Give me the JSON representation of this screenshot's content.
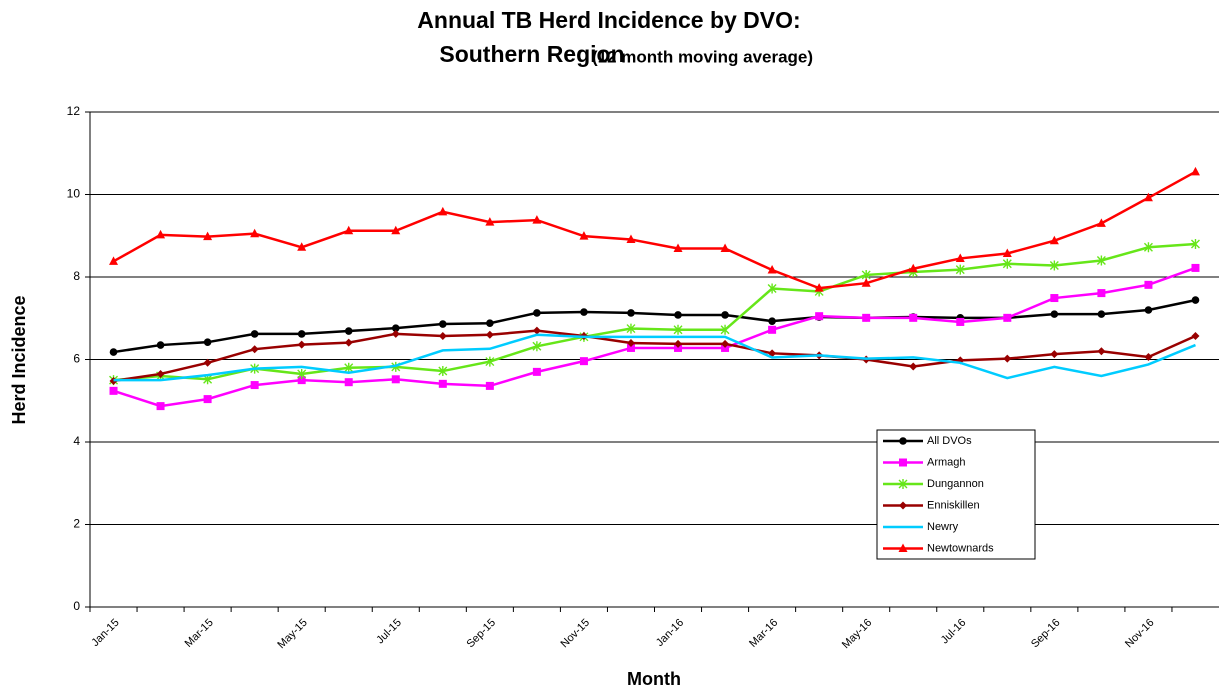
{
  "chart_data": {
    "type": "line",
    "title_lines": [
      "Annual TB Herd Incidence by DVO:",
      "Southern Region"
    ],
    "subtitle": "(12 month moving average)",
    "x_label": "Month",
    "y_label": "Herd Incidence",
    "categories": [
      "Jan-15",
      null,
      "Mar-15",
      null,
      "May-15",
      null,
      "Jul-15",
      null,
      "Sep-15",
      null,
      "Nov-15",
      null,
      "Jan-16",
      null,
      "Mar-16",
      null,
      "May-16",
      null,
      "Jul-16",
      null,
      "Sep-16",
      null,
      "Nov-16",
      null
    ],
    "ylim": [
      0,
      12
    ],
    "yticks": [
      0,
      2,
      4,
      6,
      8,
      10,
      12
    ],
    "grid": true,
    "series": [
      {
        "name": "All DVOs",
        "color": "#000000",
        "marker": "circle",
        "values": [
          6.18,
          6.35,
          6.42,
          6.62,
          6.62,
          6.69,
          6.76,
          6.86,
          6.88,
          7.13,
          7.15,
          7.13,
          7.08,
          7.08,
          6.93,
          7.03,
          7.01,
          7.03,
          7.01,
          7.01,
          7.1,
          7.1,
          7.2,
          7.44
        ]
      },
      {
        "name": "Armagh",
        "color": "#ff00ff",
        "marker": "square",
        "values": [
          5.24,
          4.87,
          5.04,
          5.38,
          5.5,
          5.45,
          5.52,
          5.41,
          5.36,
          5.7,
          5.96,
          6.28,
          6.28,
          6.28,
          6.72,
          7.05,
          7.01,
          7.01,
          6.91,
          7.01,
          7.49,
          7.61,
          7.81,
          8.22
        ]
      },
      {
        "name": "Dungannon",
        "color": "#66e619",
        "marker": "star",
        "values": [
          5.5,
          5.6,
          5.52,
          5.78,
          5.65,
          5.8,
          5.82,
          5.72,
          5.95,
          6.32,
          6.55,
          6.75,
          6.72,
          6.72,
          7.72,
          7.65,
          8.05,
          8.12,
          8.18,
          8.32,
          8.28,
          8.4,
          8.72,
          8.8
        ]
      },
      {
        "name": "Enniskillen",
        "color": "#990000",
        "marker": "diamond",
        "values": [
          5.48,
          5.65,
          5.92,
          6.25,
          6.36,
          6.41,
          6.62,
          6.57,
          6.6,
          6.7,
          6.57,
          6.4,
          6.38,
          6.38,
          6.15,
          6.1,
          6.0,
          5.83,
          5.98,
          6.02,
          6.13,
          6.2,
          6.06,
          6.57
        ]
      },
      {
        "name": "Newry",
        "color": "#00ccff",
        "marker": "none",
        "values": [
          5.5,
          5.5,
          5.62,
          5.78,
          5.82,
          5.68,
          5.85,
          6.22,
          6.26,
          6.6,
          6.55,
          6.55,
          6.55,
          6.55,
          6.05,
          6.1,
          6.02,
          6.05,
          5.92,
          5.55,
          5.82,
          5.6,
          5.88,
          6.35
        ]
      },
      {
        "name": "Newtownards",
        "color": "#ff0000",
        "marker": "triangle",
        "values": [
          8.38,
          9.02,
          8.98,
          9.05,
          8.72,
          9.12,
          9.12,
          9.58,
          9.33,
          9.38,
          8.99,
          8.91,
          8.69,
          8.69,
          8.17,
          7.73,
          7.85,
          8.2,
          8.45,
          8.57,
          8.88,
          9.3,
          9.92,
          10.55
        ]
      }
    ]
  }
}
